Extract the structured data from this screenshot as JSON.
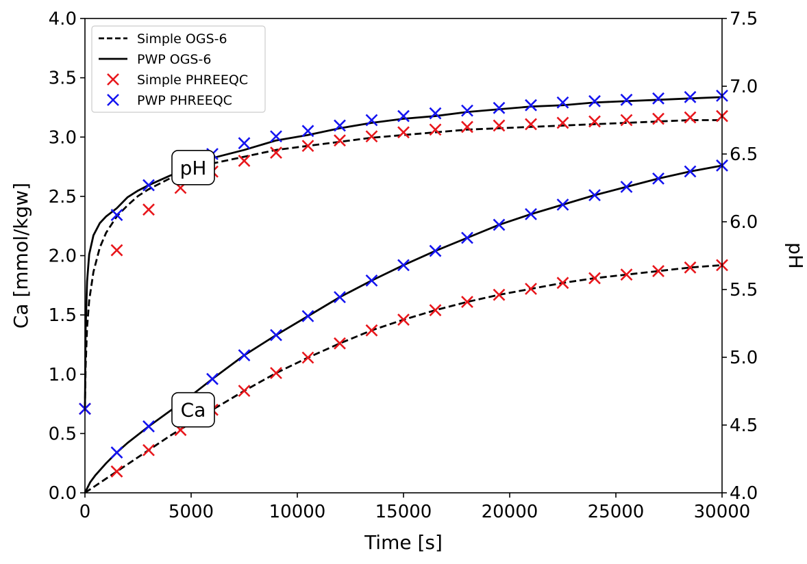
{
  "chart_data": {
    "type": "line",
    "xlabel": "Time [s]",
    "ylabel_left": "Ca [mmol/kgw]",
    "ylabel_right": "pH",
    "xlim": [
      0,
      30000
    ],
    "ylim_left": [
      0,
      4.0
    ],
    "ylim_right": [
      4.0,
      7.5
    ],
    "x_ticks": [
      0,
      5000,
      10000,
      15000,
      20000,
      25000,
      30000
    ],
    "x_tick_labels": [
      "0",
      "5000",
      "10000",
      "15000",
      "20000",
      "25000",
      "30000"
    ],
    "y_left_ticks": [
      0,
      0.5,
      1.0,
      1.5,
      2.0,
      2.5,
      3.0,
      3.5,
      4.0
    ],
    "y_left_tick_labels": [
      "0.0",
      "0.5",
      "1.0",
      "1.5",
      "2.0",
      "2.5",
      "3.0",
      "3.5",
      "4.0"
    ],
    "y_right_ticks": [
      4.0,
      4.5,
      5.0,
      5.5,
      6.0,
      6.5,
      7.0,
      7.5
    ],
    "y_right_tick_labels": [
      "4.0",
      "4.5",
      "5.0",
      "5.5",
      "6.0",
      "6.5",
      "7.0",
      "7.5"
    ],
    "grid": false,
    "legend_position": "top-left",
    "legend": [
      {
        "label": "Simple OGS-6",
        "style": "dashed-line",
        "color": "#000000"
      },
      {
        "label": "PWP OGS-6",
        "style": "solid-line",
        "color": "#000000"
      },
      {
        "label": "Simple PHREEQC",
        "style": "x-marker",
        "color": "#e8161b"
      },
      {
        "label": "PWP PHREEQC",
        "style": "x-marker",
        "color": "#1414f0"
      }
    ],
    "annotations": [
      {
        "text": "pH",
        "x": 5000,
        "y_right": 6.4
      },
      {
        "text": "Ca",
        "x": 5000,
        "y_left": 0.7
      }
    ],
    "series": [
      {
        "name": "Simple OGS-6",
        "quantity": "pH",
        "axis": "right",
        "style": "dashed",
        "color": "#000000",
        "x": [
          0,
          30,
          100,
          200,
          400,
          700,
          1000,
          1500,
          2000,
          2500,
          3000,
          4000,
          5000,
          6000,
          7500,
          9000,
          10500,
          12000,
          13500,
          15000,
          16500,
          18000,
          19500,
          21000,
          22500,
          24000,
          25500,
          27000,
          28500,
          30000
        ],
        "y": [
          4.62,
          4.92,
          5.22,
          5.42,
          5.63,
          5.81,
          5.92,
          6.04,
          6.12,
          6.19,
          6.24,
          6.32,
          6.38,
          6.43,
          6.48,
          6.53,
          6.56,
          6.59,
          6.62,
          6.64,
          6.66,
          6.68,
          6.69,
          6.7,
          6.71,
          6.72,
          6.73,
          6.74,
          6.75,
          6.75
        ]
      },
      {
        "name": "PWP OGS-6",
        "quantity": "pH",
        "axis": "right",
        "style": "solid",
        "color": "#000000",
        "x": [
          0,
          30,
          100,
          200,
          400,
          700,
          1000,
          1500,
          2000,
          2500,
          3000,
          4000,
          5000,
          6000,
          7500,
          9000,
          10500,
          12000,
          13500,
          15000,
          16500,
          18000,
          19500,
          21000,
          22500,
          24000,
          25500,
          27000,
          28500,
          30000
        ],
        "y": [
          4.62,
          5.2,
          5.56,
          5.76,
          5.9,
          5.99,
          6.04,
          6.1,
          6.18,
          6.23,
          6.27,
          6.34,
          6.4,
          6.47,
          6.53,
          6.6,
          6.64,
          6.69,
          6.73,
          6.76,
          6.78,
          6.81,
          6.83,
          6.85,
          6.86,
          6.88,
          6.89,
          6.9,
          6.91,
          6.92
        ]
      },
      {
        "name": "Simple PHREEQC",
        "quantity": "pH",
        "axis": "right",
        "style": "marker",
        "color": "#e8161b",
        "x": [
          0,
          1500,
          3000,
          4500,
          6000,
          7500,
          9000,
          10500,
          12000,
          13500,
          15000,
          16500,
          18000,
          19500,
          21000,
          22500,
          24000,
          25500,
          27000,
          28500,
          30000
        ],
        "y": [
          4.62,
          5.79,
          6.09,
          6.25,
          6.37,
          6.45,
          6.51,
          6.56,
          6.6,
          6.63,
          6.66,
          6.68,
          6.7,
          6.71,
          6.72,
          6.73,
          6.74,
          6.75,
          6.76,
          6.77,
          6.78
        ]
      },
      {
        "name": "PWP PHREEQC",
        "quantity": "pH",
        "axis": "right",
        "style": "marker",
        "color": "#1414f0",
        "x": [
          0,
          1500,
          3000,
          4500,
          6000,
          7500,
          9000,
          10500,
          12000,
          13500,
          15000,
          16500,
          18000,
          19500,
          21000,
          22500,
          24000,
          25500,
          27000,
          28500,
          30000
        ],
        "y": [
          4.62,
          6.05,
          6.27,
          6.38,
          6.5,
          6.58,
          6.63,
          6.67,
          6.71,
          6.75,
          6.78,
          6.8,
          6.82,
          6.84,
          6.86,
          6.88,
          6.89,
          6.9,
          6.91,
          6.92,
          6.93
        ]
      },
      {
        "name": "Simple OGS-6",
        "quantity": "Ca",
        "axis": "left",
        "style": "dashed",
        "color": "#000000",
        "x": [
          0,
          500,
          1000,
          1500,
          2000,
          3000,
          4000,
          5000,
          6000,
          7500,
          9000,
          10500,
          12000,
          13500,
          15000,
          16500,
          18000,
          19500,
          21000,
          22500,
          24000,
          25500,
          27000,
          28500,
          30000
        ],
        "y": [
          0.0,
          0.06,
          0.12,
          0.18,
          0.24,
          0.36,
          0.48,
          0.59,
          0.7,
          0.86,
          1.01,
          1.14,
          1.26,
          1.37,
          1.46,
          1.54,
          1.61,
          1.67,
          1.72,
          1.77,
          1.81,
          1.84,
          1.87,
          1.9,
          1.92
        ]
      },
      {
        "name": "PWP OGS-6",
        "quantity": "Ca",
        "axis": "left",
        "style": "solid",
        "color": "#000000",
        "x": [
          0,
          250,
          500,
          1000,
          1500,
          2000,
          3000,
          4000,
          5000,
          6000,
          7500,
          9000,
          10500,
          12000,
          13500,
          15000,
          16500,
          18000,
          19500,
          21000,
          22500,
          24000,
          25500,
          27000,
          28500,
          30000
        ],
        "y": [
          0.0,
          0.09,
          0.15,
          0.25,
          0.34,
          0.42,
          0.56,
          0.69,
          0.82,
          0.96,
          1.16,
          1.33,
          1.49,
          1.65,
          1.79,
          1.92,
          2.04,
          2.15,
          2.26,
          2.35,
          2.43,
          2.51,
          2.58,
          2.65,
          2.71,
          2.76
        ]
      },
      {
        "name": "Simple PHREEQC",
        "quantity": "Ca",
        "axis": "left",
        "style": "marker",
        "color": "#e8161b",
        "x": [
          1500,
          3000,
          4500,
          6000,
          7500,
          9000,
          10500,
          12000,
          13500,
          15000,
          16500,
          18000,
          19500,
          21000,
          22500,
          24000,
          25500,
          27000,
          28500,
          30000
        ],
        "y": [
          0.18,
          0.36,
          0.53,
          0.7,
          0.86,
          1.01,
          1.14,
          1.26,
          1.37,
          1.46,
          1.54,
          1.61,
          1.67,
          1.72,
          1.77,
          1.81,
          1.84,
          1.87,
          1.9,
          1.92
        ]
      },
      {
        "name": "PWP PHREEQC",
        "quantity": "Ca",
        "axis": "left",
        "style": "marker",
        "color": "#1414f0",
        "x": [
          1500,
          3000,
          4500,
          6000,
          7500,
          9000,
          10500,
          12000,
          13500,
          15000,
          16500,
          18000,
          19500,
          21000,
          22500,
          24000,
          25500,
          27000,
          28500,
          30000
        ],
        "y": [
          0.34,
          0.56,
          0.75,
          0.96,
          1.16,
          1.33,
          1.49,
          1.65,
          1.79,
          1.92,
          2.04,
          2.15,
          2.26,
          2.35,
          2.43,
          2.51,
          2.58,
          2.65,
          2.71,
          2.76
        ]
      }
    ]
  }
}
